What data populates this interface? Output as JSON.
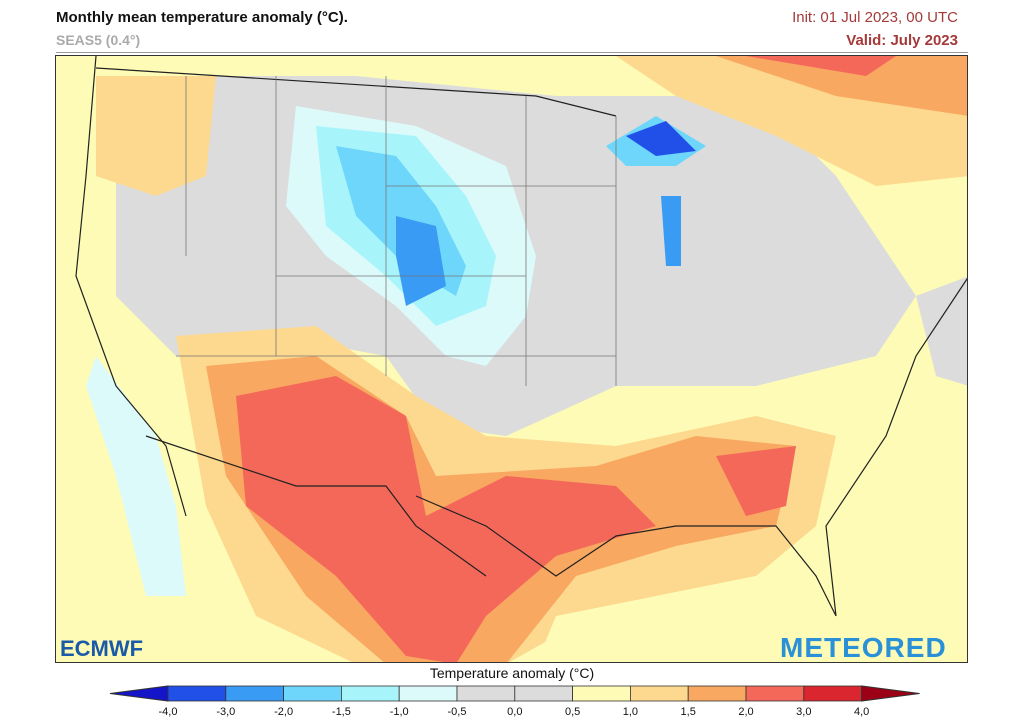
{
  "header": {
    "title": "Monthly mean temperature anomaly (°C).",
    "subtitle": "SEAS5 (0.4°)",
    "init": "Init: 01 Jul 2023, 00 UTC",
    "valid": "Valid: July 2023"
  },
  "logos": {
    "left": "ECMWF",
    "right": "METEORED"
  },
  "colorbar": {
    "title": "Temperature anomaly (°C)",
    "ticks": [
      "-4,0",
      "-3,0",
      "-2,0",
      "-1,5",
      "-1,0",
      "-0,5",
      "0,0",
      "0,5",
      "1,0",
      "1,5",
      "2,0",
      "3,0",
      "4,0"
    ],
    "colors": [
      "#2050e8",
      "#3a9bf5",
      "#6fd6fb",
      "#a8f4fb",
      "#ddfafb",
      "#dcdcdc",
      "#dcdcdc",
      "#fdfbb5",
      "#fcd98f",
      "#f8a860",
      "#f4685a",
      "#d9262f"
    ],
    "under_color": "#1414c8",
    "over_color": "#9b0016"
  },
  "map": {
    "region": "Contiguous United States"
  }
}
